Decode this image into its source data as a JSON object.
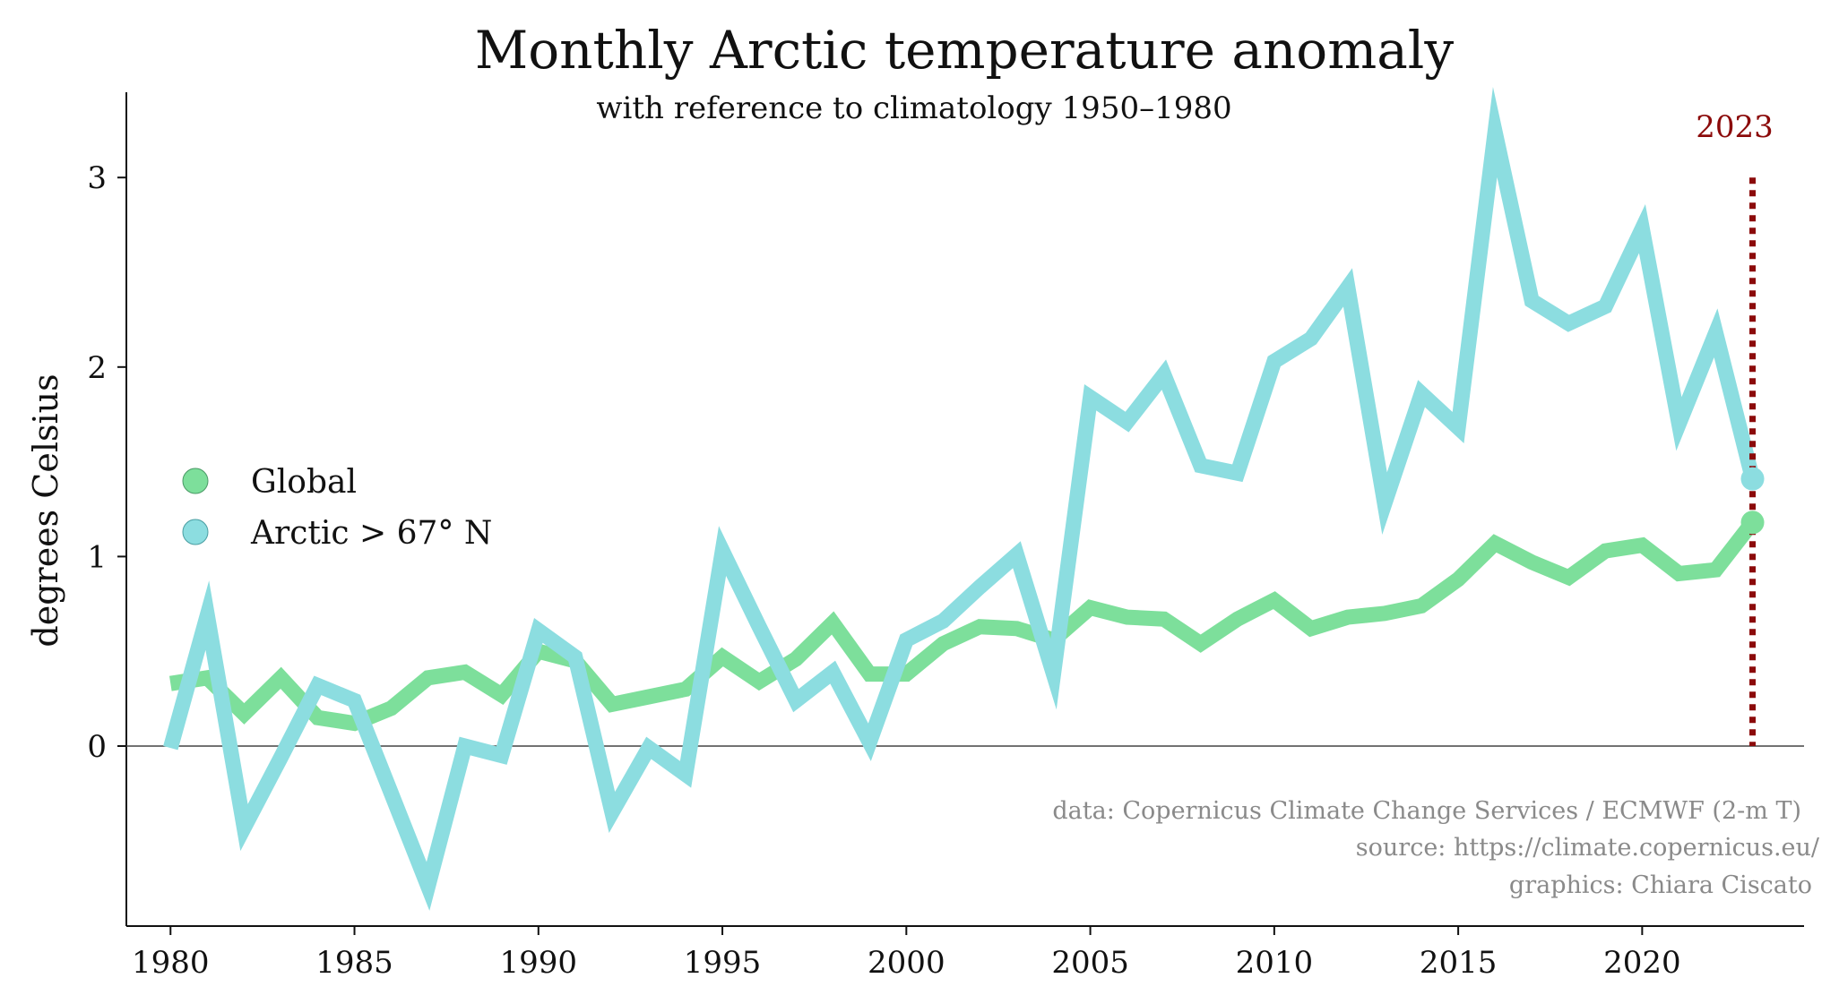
{
  "chart_data": {
    "type": "line",
    "title": "Monthly Arctic temperature anomaly",
    "subtitle": "with reference to climatology 1950–1980",
    "xlabel": "",
    "ylabel": "degrees Celsius",
    "xlim": [
      1978.8,
      2024.4
    ],
    "ylim": [
      -0.95,
      3.45
    ],
    "xticks": [
      1980,
      1985,
      1990,
      1995,
      2000,
      2005,
      2010,
      2015,
      2020
    ],
    "yticks": [
      0,
      1,
      2,
      3
    ],
    "zero_line": true,
    "grid": false,
    "legend": "center-left",
    "x": [
      1980,
      1981,
      1982,
      1983,
      1984,
      1985,
      1986,
      1987,
      1988,
      1989,
      1990,
      1991,
      1992,
      1993,
      1994,
      1995,
      1996,
      1997,
      1998,
      1999,
      2000,
      2001,
      2002,
      2003,
      2004,
      2005,
      2006,
      2007,
      2008,
      2009,
      2010,
      2011,
      2012,
      2013,
      2014,
      2015,
      2016,
      2017,
      2018,
      2019,
      2020,
      2021,
      2022,
      2023
    ],
    "series": [
      {
        "name": "Global",
        "color": "#7ddf9b",
        "values": [
          0.33,
          0.36,
          0.17,
          0.36,
          0.15,
          0.12,
          0.2,
          0.36,
          0.39,
          0.27,
          0.5,
          0.45,
          0.22,
          0.26,
          0.3,
          0.47,
          0.34,
          0.46,
          0.65,
          0.38,
          0.38,
          0.54,
          0.63,
          0.62,
          0.56,
          0.73,
          0.68,
          0.67,
          0.54,
          0.67,
          0.77,
          0.62,
          0.68,
          0.7,
          0.74,
          0.88,
          1.07,
          0.97,
          0.89,
          1.03,
          1.06,
          0.91,
          0.93,
          1.18
        ]
      },
      {
        "name": "Arctic > 67°  N",
        "color": "#8cdde0",
        "values": [
          -0.01,
          0.69,
          -0.43,
          -0.06,
          0.32,
          0.24,
          -0.25,
          -0.74,
          0.0,
          -0.05,
          0.61,
          0.47,
          -0.35,
          -0.01,
          -0.15,
          1.03,
          0.63,
          0.24,
          0.39,
          0.02,
          0.56,
          0.66,
          0.84,
          1.01,
          0.38,
          1.84,
          1.71,
          1.96,
          1.48,
          1.44,
          2.03,
          2.15,
          2.42,
          1.28,
          1.86,
          1.68,
          3.24,
          2.35,
          2.23,
          2.32,
          2.73,
          1.7,
          2.18,
          1.41
        ]
      }
    ],
    "annotations": {
      "marker_year": 2023,
      "marker_label": "2023",
      "marker_color": "#8b0a0a",
      "marker_ymax": 3.0
    }
  },
  "credits": {
    "data": "data: Copernicus Climate Change Services / ECMWF (2-m T)",
    "source": "source: https://climate.copernicus.eu/",
    "graphics": "graphics: Chiara Ciscato"
  }
}
